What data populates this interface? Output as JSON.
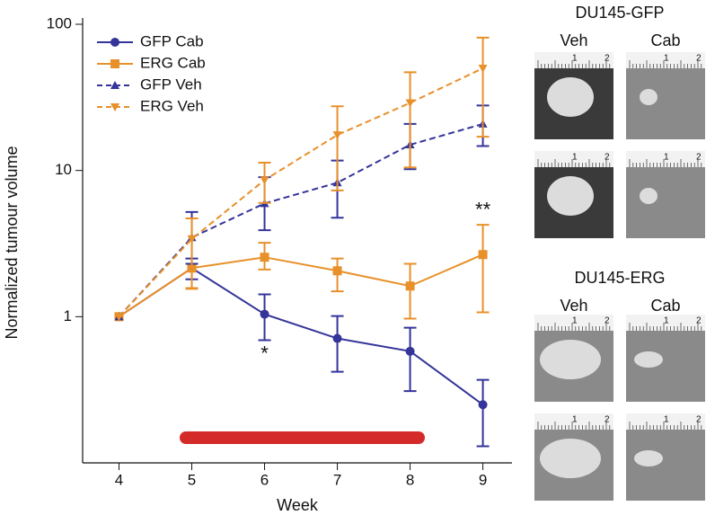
{
  "chart_data": {
    "type": "line",
    "ylabel": "Normalized tumour volume",
    "xlabel": "Week",
    "log_scale": true,
    "xlim": [
      3.5,
      9.4
    ],
    "xticks": [
      4,
      5,
      6,
      7,
      8,
      9
    ],
    "ylim": [
      0.1,
      100
    ],
    "yticks": [
      1,
      10,
      100
    ],
    "legend": "upper left",
    "x": [
      4,
      5,
      6,
      7,
      8,
      9
    ],
    "series": [
      {
        "name": "GFP Cab",
        "color": "#34349a",
        "marker": "circle",
        "dashed": false,
        "values": [
          1,
          2.15,
          1.04,
          0.71,
          0.58,
          0.25
        ],
        "lower": [
          null,
          1.8,
          0.69,
          0.42,
          0.31,
          0.13
        ],
        "upper": [
          null,
          2.5,
          1.42,
          1.01,
          0.84,
          0.37
        ]
      },
      {
        "name": "ERG Cab",
        "color": "#e8902a",
        "marker": "square",
        "dashed": false,
        "values": [
          1,
          2.15,
          2.55,
          2.06,
          1.62,
          2.66
        ],
        "lower": [
          null,
          1.57,
          2.1,
          1.49,
          0.97,
          1.07
        ],
        "upper": [
          null,
          4.7,
          3.2,
          2.5,
          2.3,
          4.25
        ]
      },
      {
        "name": "GFP Veh",
        "color": "#34349a",
        "marker": "triangle-up",
        "dashed": true,
        "values": [
          1,
          3.48,
          5.95,
          8.25,
          15,
          20.8
        ],
        "lower": [
          null,
          2.3,
          3.9,
          4.75,
          10.2,
          14.7
        ],
        "upper": [
          null,
          5.2,
          9.0,
          11.7,
          20.8,
          27.8
        ]
      },
      {
        "name": "ERG Veh",
        "color": "#e8902a",
        "marker": "triangle-down",
        "dashed": true,
        "values": [
          1,
          3.4,
          8.6,
          17.5,
          29,
          50
        ],
        "lower": [
          null,
          1.55,
          6.0,
          7.3,
          10.5,
          17
        ],
        "upper": [
          null,
          4.7,
          11.3,
          27.5,
          47,
          81
        ]
      }
    ],
    "annotations": [
      {
        "text": "*",
        "x": 6,
        "y": 0.55
      },
      {
        "text": "**",
        "x": 9,
        "y": 5.3
      }
    ]
  },
  "panels": [
    {
      "title": "DU145-GFP",
      "columns": [
        "Veh",
        "Cab"
      ]
    },
    {
      "title": "DU145-ERG",
      "columns": [
        "Veh",
        "Cab"
      ]
    }
  ],
  "ruler_labels": [
    "1",
    "2"
  ]
}
